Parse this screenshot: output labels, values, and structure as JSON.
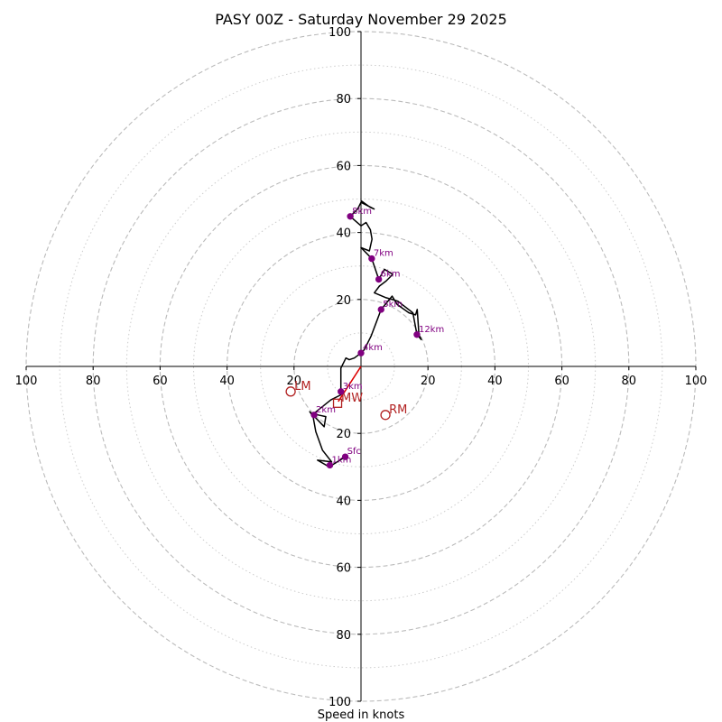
{
  "chart_data": {
    "type": "hodograph",
    "title": "PASY 00Z - Saturday November 29 2025",
    "xlabel": "Speed in knots",
    "units": "knots",
    "range": [
      -100,
      100
    ],
    "major_rings": [
      20,
      40,
      60,
      80,
      100
    ],
    "minor_rings": [
      10,
      30,
      50,
      70,
      90
    ],
    "x_tick_labels": [
      "100",
      "80",
      "60",
      "40",
      "20",
      "20",
      "40",
      "60",
      "80",
      "100"
    ],
    "x_tick_values": [
      -100,
      -80,
      -60,
      -40,
      -20,
      20,
      40,
      60,
      80,
      100
    ],
    "y_tick_labels": [
      "100",
      "80",
      "60",
      "40",
      "20",
      "20",
      "40",
      "60",
      "80",
      "100"
    ],
    "y_tick_values": [
      100,
      80,
      60,
      40,
      20,
      -20,
      -40,
      -60,
      -80,
      -100
    ],
    "colors": {
      "trace": "#000000",
      "height_marker": "#800080",
      "motion": "#b22222",
      "shear_vector": "#dd0000",
      "major_ring": "#bbbbbb",
      "minor_ring": "#cccccc"
    },
    "trace": [
      [
        -4.7,
        -27
      ],
      [
        -9.5,
        -30
      ],
      [
        -13,
        -28
      ],
      [
        -8.8,
        -28.5
      ],
      [
        -11.5,
        -25
      ],
      [
        -13.5,
        -19.5
      ],
      [
        -14.3,
        -15
      ],
      [
        -15.3,
        -13.5
      ],
      [
        -11,
        -18
      ],
      [
        -10.5,
        -15
      ],
      [
        -12.8,
        -14.5
      ],
      [
        -14,
        -14
      ],
      [
        -9,
        -10
      ],
      [
        -6,
        -8.5
      ],
      [
        -6,
        -5
      ],
      [
        -6,
        -0.5
      ],
      [
        -4.5,
        2.5
      ],
      [
        -3.5,
        2
      ],
      [
        -2,
        2.5
      ],
      [
        0,
        4
      ],
      [
        1,
        5
      ],
      [
        3,
        9
      ],
      [
        4.5,
        13
      ],
      [
        6,
        17
      ],
      [
        9.3,
        21
      ],
      [
        10.8,
        18.5
      ],
      [
        14.3,
        16
      ],
      [
        16.3,
        15.4
      ],
      [
        16.8,
        17
      ],
      [
        17.3,
        9.5
      ],
      [
        18,
        8
      ],
      [
        16.7,
        9.5
      ],
      [
        15.5,
        16
      ],
      [
        11,
        19.5
      ],
      [
        7.5,
        20.5
      ],
      [
        4,
        22
      ],
      [
        5.5,
        24
      ],
      [
        7.5,
        25.5
      ],
      [
        9.5,
        27.5
      ],
      [
        7,
        29
      ],
      [
        5.3,
        26
      ],
      [
        3.2,
        32.2
      ],
      [
        0,
        35.5
      ],
      [
        2.5,
        34.5
      ],
      [
        3.3,
        38
      ],
      [
        2.8,
        40.8
      ],
      [
        1.5,
        43
      ],
      [
        0,
        42
      ],
      [
        -3.2,
        44.8
      ],
      [
        -1,
        47
      ],
      [
        0,
        49
      ],
      [
        3.9,
        47
      ],
      [
        2.8,
        47.5
      ],
      [
        0,
        49.5
      ]
    ],
    "height_points": [
      {
        "label": "Sfc",
        "u": -4.7,
        "v": -27
      },
      {
        "label": "1km",
        "u": -9.3,
        "v": -29.5
      },
      {
        "label": "2km",
        "u": -14,
        "v": -14.5
      },
      {
        "label": "3km",
        "u": -6,
        "v": -7.5
      },
      {
        "label": "4km",
        "u": 0,
        "v": 4
      },
      {
        "label": "5km",
        "u": 6,
        "v": 17
      },
      {
        "label": "6km",
        "u": 5.3,
        "v": 26
      },
      {
        "label": "7km",
        "u": 3.2,
        "v": 32.2
      },
      {
        "label": "8km",
        "u": -3.2,
        "v": 44.8
      },
      {
        "label": "12km",
        "u": 16.7,
        "v": 9.5
      }
    ],
    "storm_motions": [
      {
        "label": "LM",
        "u": -21,
        "v": -7.5,
        "marker": "circle"
      },
      {
        "label": "RM",
        "u": 7.3,
        "v": -14.5,
        "marker": "circle"
      },
      {
        "label": "MW",
        "u": -7,
        "v": -11,
        "marker": "square"
      }
    ],
    "shear_vector": {
      "u1": -6.8,
      "v1": -10.5,
      "u2": 0,
      "v2": 0
    }
  }
}
